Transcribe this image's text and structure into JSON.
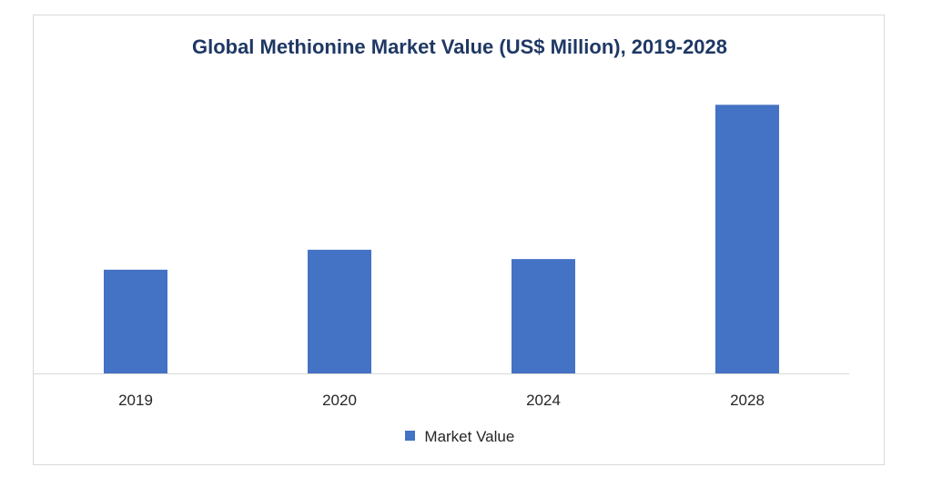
{
  "chart_data": {
    "type": "bar",
    "title": "Global Methionine Market Value (US$ Million), 2019-2028",
    "categories": [
      "2019",
      "2020",
      "2024",
      "2028"
    ],
    "series": [
      {
        "name": "Market Value",
        "values": [
          3900,
          4650,
          4300,
          10100
        ]
      }
    ],
    "xlabel": "",
    "ylabel": "",
    "ylim": [
      0,
      11000
    ],
    "grid": false,
    "y_axis_visible": false,
    "legend": "bottom",
    "colors": {
      "bar": "#4472c4",
      "title": "#1f3864",
      "baseline": "#d9d9d9"
    }
  }
}
